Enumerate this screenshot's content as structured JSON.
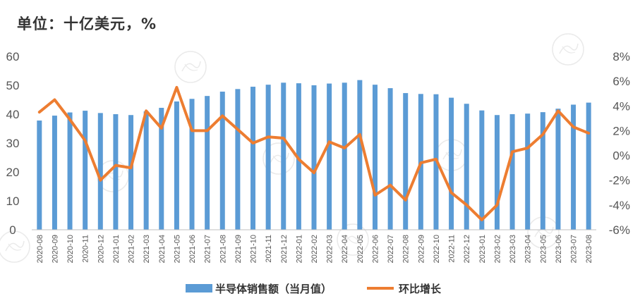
{
  "unit_label": "单位：十亿美元，%",
  "chart_data": {
    "type": "bar+line",
    "categories": [
      "2020-08",
      "2020-09",
      "2020-10",
      "2020-11",
      "2020-12",
      "2021-01",
      "2021-02",
      "2021-03",
      "2021-04",
      "2021-05",
      "2021-06",
      "2021-07",
      "2021-08",
      "2021-09",
      "2021-10",
      "2021-11",
      "2021-12",
      "2022-01",
      "2022-02",
      "2022-03",
      "2022-04",
      "2022-05",
      "2022-06",
      "2022-07",
      "2022-08",
      "2022-09",
      "2022-10",
      "2022-11",
      "2022-12",
      "2023-01",
      "2023-02",
      "2023-03",
      "2023-04",
      "2023-05",
      "2023-06",
      "2023-07",
      "2023-08"
    ],
    "series": [
      {
        "name": "半导体销售额（当月值）",
        "type": "bar",
        "axis": "left",
        "color": "#5b9bd5",
        "values": [
          37.8,
          39.5,
          40.6,
          41.2,
          40.4,
          40.0,
          39.7,
          41.0,
          42.2,
          44.4,
          45.3,
          46.3,
          47.8,
          48.7,
          49.5,
          50.2,
          50.9,
          50.7,
          50.0,
          50.6,
          50.9,
          51.8,
          50.2,
          49.0,
          47.3,
          47.0,
          46.9,
          45.7,
          43.6,
          41.3,
          39.7,
          40.0,
          40.2,
          40.7,
          41.9,
          43.3,
          44.0
        ]
      },
      {
        "name": "环比增长",
        "type": "line",
        "axis": "right",
        "color": "#ed7d31",
        "values": [
          3.5,
          4.5,
          2.9,
          1.2,
          -2.0,
          -0.8,
          -1.0,
          3.6,
          2.2,
          5.5,
          2.0,
          2.0,
          3.2,
          2.1,
          1.0,
          1.5,
          1.4,
          -0.3,
          -1.4,
          1.1,
          0.6,
          1.7,
          -3.2,
          -2.4,
          -3.6,
          -0.6,
          -0.3,
          -3.0,
          -4.0,
          -5.2,
          -4.0,
          0.3,
          0.6,
          1.7,
          3.6,
          2.3,
          1.8
        ]
      }
    ],
    "ylim_left": [
      0,
      60
    ],
    "yticks_left": [
      "0",
      "10",
      "20",
      "30",
      "40",
      "50",
      "60"
    ],
    "ylim_right": [
      -6,
      8
    ],
    "yticks_right": [
      "-6%",
      "-4%",
      "-2%",
      "0%",
      "2%",
      "4%",
      "6%",
      "8%"
    ],
    "grid": false,
    "legend_position": "bottom-center"
  }
}
